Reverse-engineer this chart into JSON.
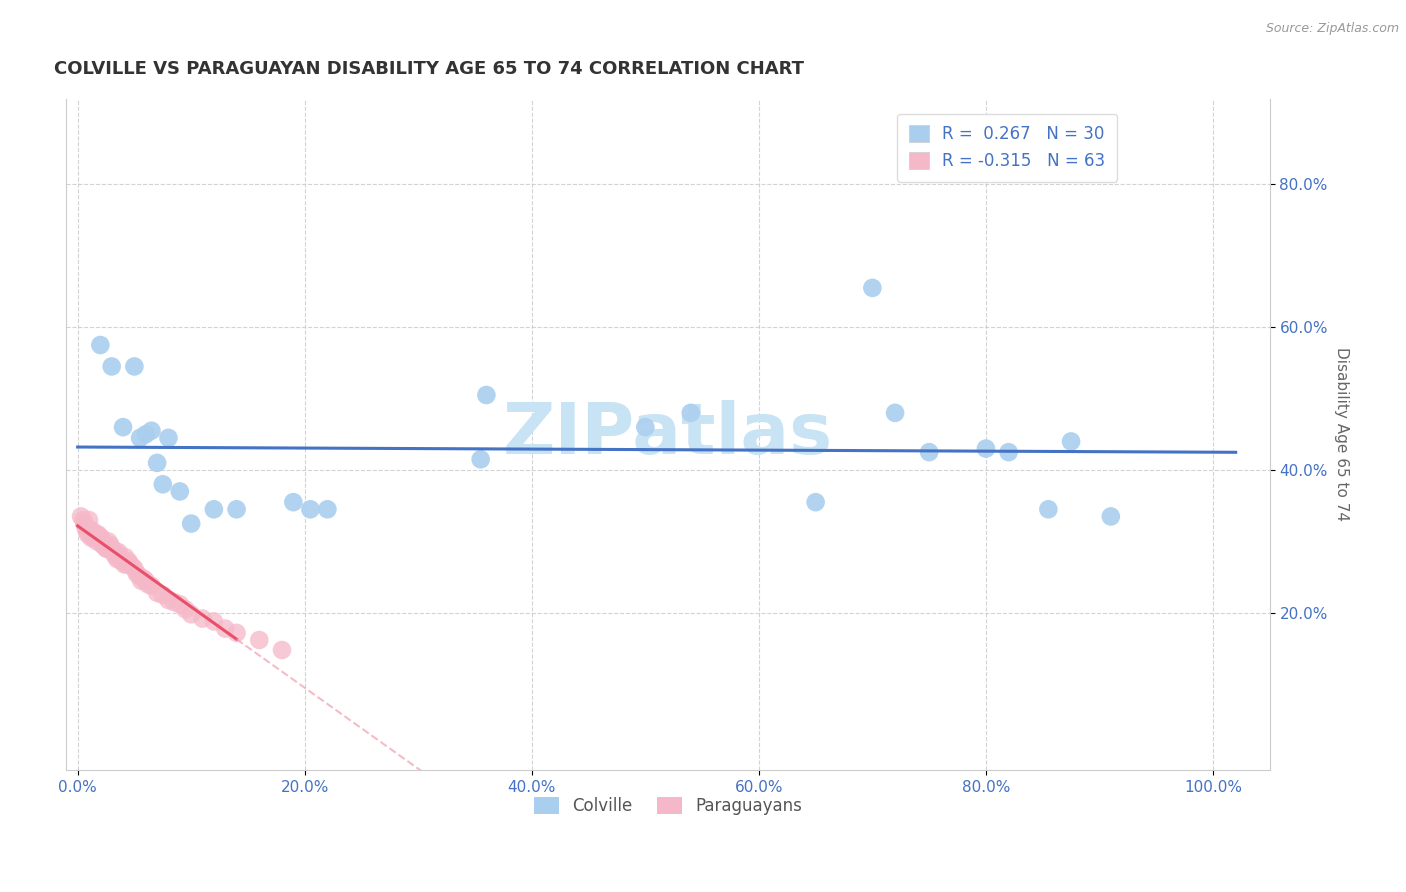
{
  "title": "COLVILLE VS PARAGUAYAN DISABILITY AGE 65 TO 74 CORRELATION CHART",
  "source": "Source: ZipAtlas.com",
  "ylabel": "Disability Age 65 to 74",
  "xlabel": "",
  "xlim": [
    -0.01,
    1.05
  ],
  "ylim": [
    -0.02,
    0.92
  ],
  "xticks": [
    0.0,
    0.2,
    0.4,
    0.6,
    0.8,
    1.0
  ],
  "xtick_labels": [
    "0.0%",
    "20.0%",
    "40.0%",
    "60.0%",
    "80.0%",
    "100.0%"
  ],
  "yticks": [
    0.2,
    0.4,
    0.6,
    0.8
  ],
  "ytick_labels": [
    "20.0%",
    "40.0%",
    "60.0%",
    "80.0%"
  ],
  "watermark": "ZIPatlas",
  "legend_R1": "R =  0.267",
  "legend_N1": "N = 30",
  "legend_R2": "R = -0.315",
  "legend_N2": "N = 63",
  "colville_color": "#aacfee",
  "paraguayan_color": "#f5b8c8",
  "colville_line_color": "#4472c4",
  "paraguayan_line_color": "#e8506a",
  "paraguayan_line_dash_color": "#f0a0b0",
  "colville_x": [
    0.02,
    0.03,
    0.04,
    0.05,
    0.055,
    0.06,
    0.065,
    0.07,
    0.075,
    0.08,
    0.09,
    0.1,
    0.12,
    0.14,
    0.19,
    0.205,
    0.22,
    0.355,
    0.36,
    0.5,
    0.54,
    0.65,
    0.7,
    0.72,
    0.75,
    0.8,
    0.82,
    0.855,
    0.875,
    0.91
  ],
  "colville_y": [
    0.575,
    0.545,
    0.46,
    0.545,
    0.445,
    0.45,
    0.455,
    0.41,
    0.38,
    0.445,
    0.37,
    0.325,
    0.345,
    0.345,
    0.355,
    0.345,
    0.345,
    0.415,
    0.505,
    0.46,
    0.48,
    0.355,
    0.655,
    0.48,
    0.425,
    0.43,
    0.425,
    0.345,
    0.44,
    0.335
  ],
  "paraguayan_x": [
    0.003,
    0.005,
    0.006,
    0.007,
    0.008,
    0.009,
    0.01,
    0.011,
    0.012,
    0.013,
    0.014,
    0.015,
    0.016,
    0.017,
    0.018,
    0.019,
    0.02,
    0.021,
    0.022,
    0.023,
    0.024,
    0.025,
    0.026,
    0.027,
    0.028,
    0.029,
    0.03,
    0.031,
    0.032,
    0.033,
    0.034,
    0.035,
    0.036,
    0.037,
    0.038,
    0.04,
    0.041,
    0.042,
    0.043,
    0.045,
    0.046,
    0.048,
    0.05,
    0.052,
    0.054,
    0.056,
    0.058,
    0.06,
    0.062,
    0.065,
    0.07,
    0.075,
    0.08,
    0.085,
    0.09,
    0.095,
    0.1,
    0.11,
    0.12,
    0.13,
    0.14,
    0.16,
    0.18
  ],
  "paraguayan_y": [
    0.335,
    0.33,
    0.325,
    0.32,
    0.315,
    0.31,
    0.33,
    0.315,
    0.305,
    0.315,
    0.305,
    0.305,
    0.31,
    0.3,
    0.31,
    0.305,
    0.305,
    0.305,
    0.295,
    0.295,
    0.295,
    0.29,
    0.29,
    0.3,
    0.29,
    0.295,
    0.29,
    0.285,
    0.285,
    0.28,
    0.285,
    0.275,
    0.285,
    0.275,
    0.278,
    0.272,
    0.268,
    0.278,
    0.268,
    0.272,
    0.268,
    0.265,
    0.262,
    0.255,
    0.252,
    0.245,
    0.248,
    0.245,
    0.24,
    0.238,
    0.228,
    0.225,
    0.218,
    0.215,
    0.212,
    0.205,
    0.198,
    0.192,
    0.188,
    0.178,
    0.172,
    0.162,
    0.148
  ],
  "title_fontsize": 13,
  "source_fontsize": 9,
  "axis_fontsize": 11,
  "tick_fontsize": 11,
  "legend_fontsize": 12,
  "background_color": "#ffffff",
  "grid_color": "#c8c8c8",
  "watermark_color": "#c8e4f4",
  "watermark_fontsize": 52
}
